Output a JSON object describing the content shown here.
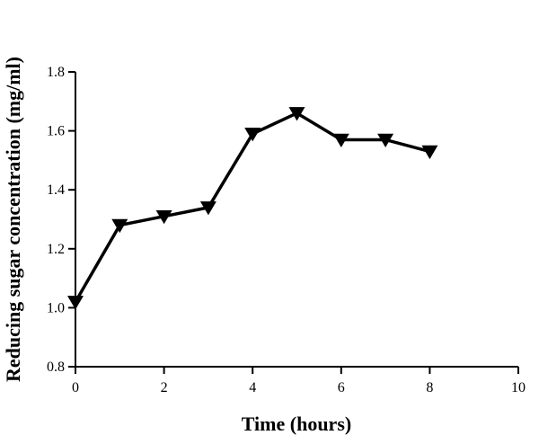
{
  "chart_data": {
    "type": "line",
    "title": "",
    "xlabel": "Time (hours)",
    "ylabel": "Reducing sugar concentration (mg/ml)",
    "xlim": [
      0,
      10
    ],
    "ylim": [
      0.8,
      1.8
    ],
    "x_ticks": [
      "0",
      "2",
      "4",
      "6",
      "8",
      "10"
    ],
    "y_ticks": [
      "0.8",
      "1.0",
      "1.2",
      "1.4",
      "1.6",
      "1.8"
    ],
    "grid": false,
    "legend": "none",
    "series": [
      {
        "marker": "down-triangle",
        "color": "#000000",
        "x": [
          0,
          1,
          2,
          3,
          4,
          5,
          6,
          7,
          8
        ],
        "y": [
          1.02,
          1.28,
          1.31,
          1.34,
          1.59,
          1.66,
          1.57,
          1.57,
          1.53
        ]
      }
    ]
  }
}
